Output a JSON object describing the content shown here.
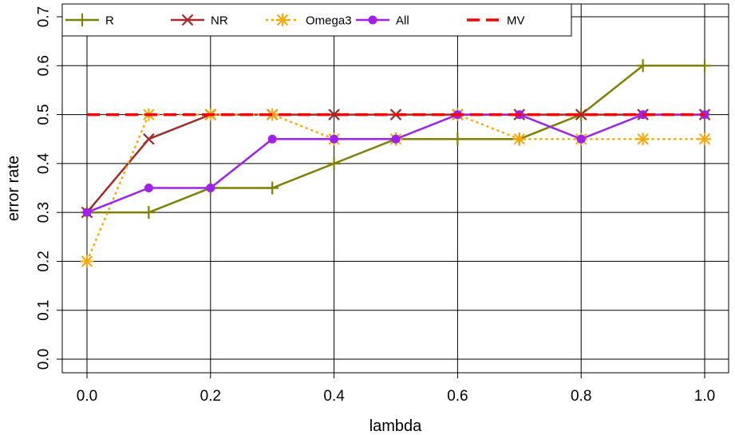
{
  "chart_data": {
    "type": "line",
    "xlabel": "lambda",
    "ylabel": "error rate",
    "xlim": [
      0,
      1
    ],
    "ylim": [
      0,
      0.7
    ],
    "x_ticks": [
      "0.0",
      "0.2",
      "0.4",
      "0.6",
      "0.8",
      "1.0"
    ],
    "y_ticks": [
      "0.0",
      "0.1",
      "0.2",
      "0.3",
      "0.4",
      "0.5",
      "0.6",
      "0.7"
    ],
    "grid": true,
    "legend_position": "top-left",
    "x": [
      0.0,
      0.1,
      0.2,
      0.3,
      0.4,
      0.5,
      0.6,
      0.7,
      0.8,
      0.9,
      1.0
    ],
    "series": [
      {
        "name": "R",
        "color": "#808000",
        "marker": "plus",
        "dash": "solid",
        "values": [
          0.3,
          0.3,
          0.35,
          0.35,
          0.4,
          0.45,
          0.45,
          0.45,
          0.5,
          0.6,
          0.6
        ]
      },
      {
        "name": "NR",
        "color": "#a52a2a",
        "marker": "cross",
        "dash": "solid",
        "values": [
          0.3,
          0.45,
          0.5,
          0.5,
          0.5,
          0.5,
          0.5,
          0.5,
          0.5,
          0.5,
          0.5
        ]
      },
      {
        "name": "Omega3",
        "color": "#ffa500",
        "marker": "star",
        "dash": "dotted",
        "values": [
          0.2,
          0.5,
          0.5,
          0.5,
          0.45,
          0.45,
          0.5,
          0.45,
          0.45,
          0.45,
          0.45
        ]
      },
      {
        "name": "All",
        "color": "#a020f0",
        "marker": "circle",
        "dash": "solid",
        "values": [
          0.3,
          0.35,
          0.35,
          0.45,
          0.45,
          0.45,
          0.5,
          0.5,
          0.45,
          0.5,
          0.5
        ]
      },
      {
        "name": "MV",
        "color": "#ff0000",
        "marker": "none",
        "dash": "dashed",
        "values": [
          0.5,
          0.5,
          0.5,
          0.5,
          0.5,
          0.5,
          0.5,
          0.5,
          0.5,
          0.5,
          0.5
        ]
      }
    ]
  }
}
